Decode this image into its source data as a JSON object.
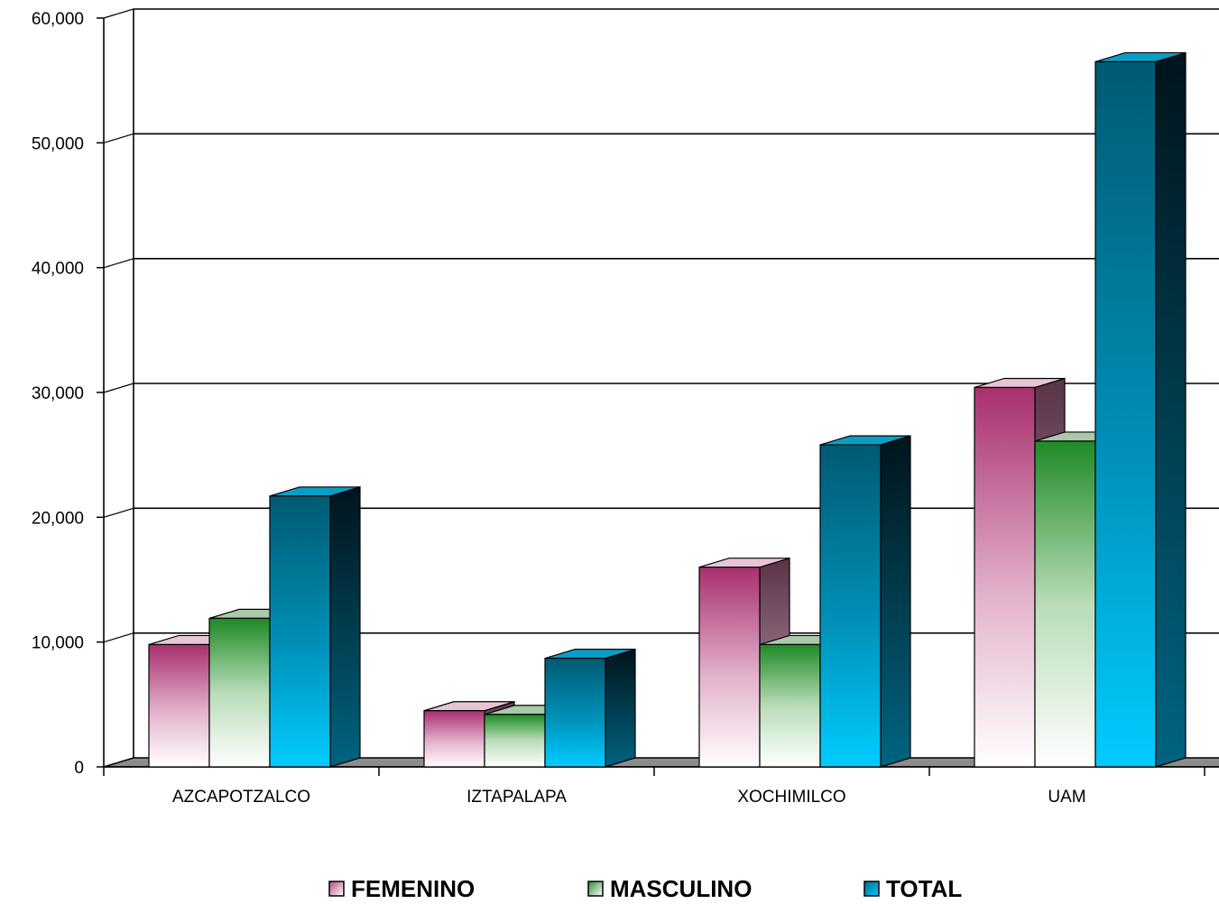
{
  "chart_data": {
    "type": "bar",
    "title": "",
    "xlabel": "",
    "ylabel": "",
    "categories": [
      "AZCAPOTZALCO",
      "IZTAPALAPA",
      "XOCHIMILCO",
      "UAM"
    ],
    "series": [
      {
        "name": "FEMENINO",
        "values": [
          9800,
          4500,
          16000,
          30400
        ]
      },
      {
        "name": "MASCULINO",
        "values": [
          11900,
          4200,
          9800,
          26100
        ]
      },
      {
        "name": "TOTAL",
        "values": [
          21700,
          8700,
          25800,
          56500
        ]
      }
    ],
    "ylim": [
      0,
      60000
    ],
    "yticks": [
      "0",
      "10,000",
      "20,000",
      "30,000",
      "40,000",
      "50,000",
      "60,000"
    ],
    "grid": true,
    "legend_position": "bottom",
    "style": "3d-clustered-column"
  }
}
